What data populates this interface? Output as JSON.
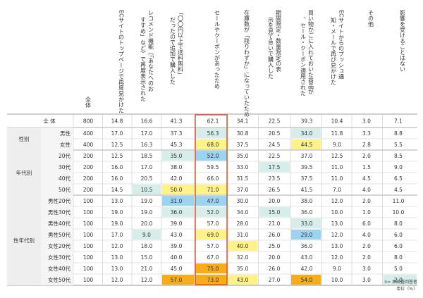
{
  "chart_data": {
    "type": "table",
    "columns": [
      "全体",
      "ECサイトのトップページで再度見かけた",
      "レコメンド機能（「あなたへのおすすめ」など）で再度表示された",
      "「〇〇円以上で送料無料」だったので追加で購入した",
      "セールやクーポンがあったため",
      "在庫数が「残りわずか」になっていたため",
      "期間限定・数量限定の表示を見て急いで購入した",
      "買い物かごに入れておいた商品が、セール・クーポン適用された",
      "ECサイトからのプッシュ通知・メールで再び見かけた",
      "その他",
      "影響を受けることはない"
    ],
    "rows": [
      {
        "group": "",
        "label": "全 体",
        "values": [
          800,
          14.8,
          16.6,
          41.3,
          62.1,
          34.1,
          22.5,
          39.3,
          10.4,
          3.0,
          7.1
        ]
      },
      {
        "group": "性別",
        "label": "男性",
        "values": [
          400,
          17.0,
          17.0,
          37.3,
          56.3,
          30.8,
          20.5,
          34.0,
          11.8,
          3.3,
          8.8
        ]
      },
      {
        "group": "性別",
        "label": "女性",
        "values": [
          400,
          12.5,
          16.3,
          45.3,
          68.0,
          37.5,
          24.5,
          44.5,
          9.0,
          2.8,
          5.5
        ]
      },
      {
        "group": "年代別",
        "label": "20代",
        "values": [
          200,
          12.5,
          18.5,
          35.0,
          52.0,
          35.0,
          22.5,
          37.0,
          12.5,
          2.0,
          8.5
        ]
      },
      {
        "group": "年代別",
        "label": "30代",
        "values": [
          200,
          16.0,
          17.0,
          38.0,
          59.5,
          33.0,
          17.5,
          39.5,
          11.0,
          1.5,
          9.0
        ]
      },
      {
        "group": "年代別",
        "label": "40代",
        "values": [
          200,
          16.0,
          20.5,
          42.0,
          66.0,
          31.5,
          23.5,
          37.5,
          11.0,
          4.5,
          6.5
        ]
      },
      {
        "group": "年代別",
        "label": "50代",
        "values": [
          200,
          14.5,
          10.5,
          50.0,
          71.0,
          37.0,
          26.5,
          41.5,
          7.0,
          4.0,
          4.5
        ]
      },
      {
        "group": "性年代別",
        "label": "男性20代",
        "values": [
          100,
          13.0,
          19.0,
          31.0,
          47.0,
          30.0,
          20.0,
          38.0,
          12.0,
          2.0,
          11.0
        ]
      },
      {
        "group": "性年代別",
        "label": "男性30代",
        "values": [
          100,
          19.0,
          19.0,
          36.0,
          52.0,
          34.0,
          15.0,
          36.0,
          10.0,
          1.0,
          10.0
        ]
      },
      {
        "group": "性年代別",
        "label": "男性40代",
        "values": [
          100,
          19.0,
          20.0,
          39.0,
          57.0,
          28.0,
          21.0,
          33.0,
          13.0,
          6.0,
          8.0
        ]
      },
      {
        "group": "性年代別",
        "label": "男性50代",
        "values": [
          100,
          17.0,
          9.0,
          43.0,
          69.0,
          31.0,
          26.0,
          29.0,
          12.0,
          4.0,
          6.0
        ]
      },
      {
        "group": "性年代別",
        "label": "女性20代",
        "values": [
          100,
          12.0,
          18.0,
          39.0,
          57.0,
          40.0,
          25.0,
          36.0,
          13.0,
          2.0,
          6.0
        ]
      },
      {
        "group": "性年代別",
        "label": "女性30代",
        "values": [
          100,
          13.0,
          15.0,
          40.0,
          67.0,
          32.0,
          20.0,
          43.0,
          12.0,
          2.0,
          8.0
        ]
      },
      {
        "group": "性年代別",
        "label": "女性40代",
        "values": [
          100,
          13.0,
          21.0,
          45.0,
          75.0,
          35.0,
          26.0,
          42.0,
          9.0,
          3.0,
          5.0
        ]
      },
      {
        "group": "性年代別",
        "label": "女性50代",
        "values": [
          100,
          12.0,
          12.0,
          57.0,
          73.0,
          43.0,
          27.0,
          54.0,
          10.0,
          3.0,
          2.0
        ]
      }
    ],
    "highlights": [
      {
        "row": 1,
        "col": 4,
        "color": "#d6ede9"
      },
      {
        "row": 1,
        "col": 7,
        "color": "#d6ede9"
      },
      {
        "row": 2,
        "col": 4,
        "color": "#fdf38a"
      },
      {
        "row": 2,
        "col": 7,
        "color": "#fdf38a"
      },
      {
        "row": 3,
        "col": 3,
        "color": "#d6ede9"
      },
      {
        "row": 3,
        "col": 4,
        "color": "#9cd3f1"
      },
      {
        "row": 4,
        "col": 6,
        "color": "#d6ede9"
      },
      {
        "row": 6,
        "col": 2,
        "color": "#d6ede9"
      },
      {
        "row": 6,
        "col": 3,
        "color": "#fdf38a"
      },
      {
        "row": 6,
        "col": 4,
        "color": "#fdf38a"
      },
      {
        "row": 7,
        "col": 3,
        "color": "#9cd3f1"
      },
      {
        "row": 7,
        "col": 4,
        "color": "#9cd3f1"
      },
      {
        "row": 8,
        "col": 3,
        "color": "#d6ede9"
      },
      {
        "row": 8,
        "col": 4,
        "color": "#d6ede9"
      },
      {
        "row": 8,
        "col": 6,
        "color": "#d6ede9"
      },
      {
        "row": 9,
        "col": 7,
        "color": "#d6ede9"
      },
      {
        "row": 10,
        "col": 2,
        "color": "#d6ede9"
      },
      {
        "row": 10,
        "col": 4,
        "color": "#fdf38a"
      },
      {
        "row": 10,
        "col": 7,
        "color": "#9cd3f1"
      },
      {
        "row": 11,
        "col": 5,
        "color": "#fdf38a"
      },
      {
        "row": 13,
        "col": 4,
        "color": "#f5ac1d"
      },
      {
        "row": 14,
        "col": 3,
        "color": "#f5ac1d"
      },
      {
        "row": 14,
        "col": 4,
        "color": "#f5ac1d"
      },
      {
        "row": 14,
        "col": 5,
        "color": "#fdf38a"
      },
      {
        "row": 14,
        "col": 7,
        "color": "#f5ac1d"
      },
      {
        "row": 14,
        "col": 10,
        "color": "#d6ede9"
      }
    ],
    "boxed_column": 4,
    "box_color": "#e0533f"
  },
  "footnote": {
    "n": "n= 本調査回答者",
    "unit": "単位（%）"
  }
}
